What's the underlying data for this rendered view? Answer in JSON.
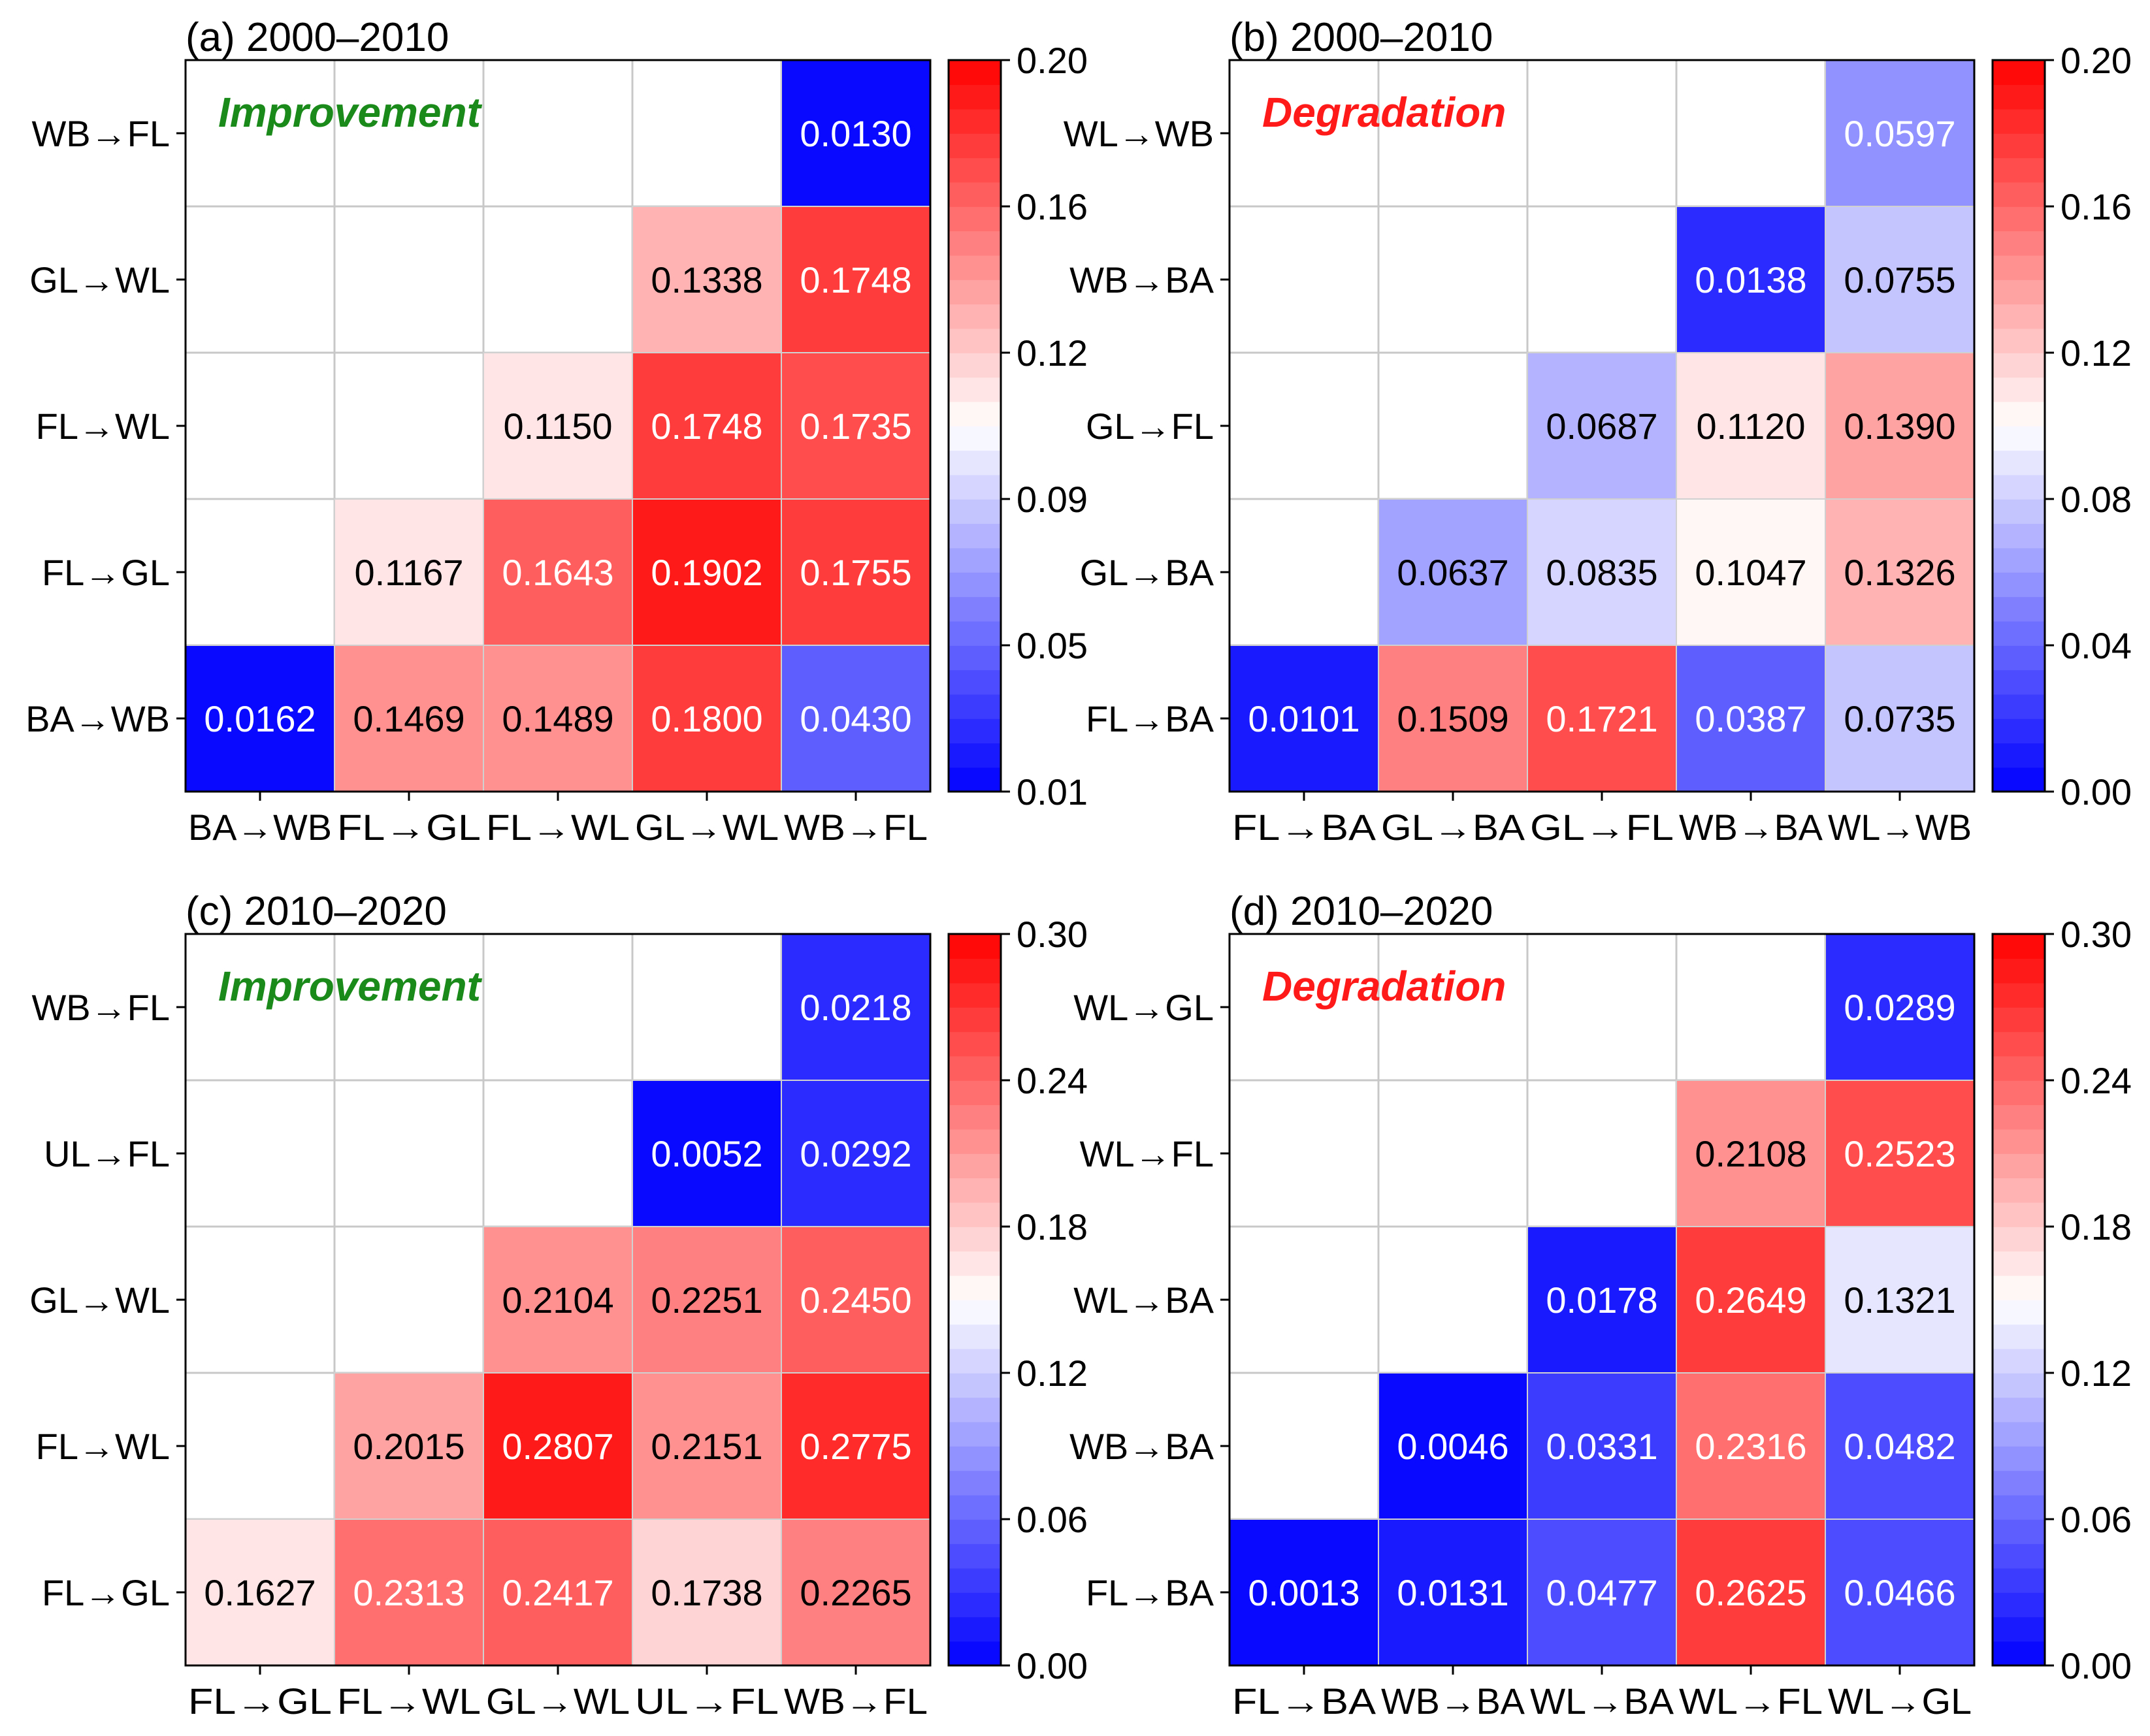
{
  "chart_data": [
    {
      "type": "heatmap",
      "title": "(a) 2000–2010",
      "annotation": "Improvement",
      "annotation_color": "#1a8a1a",
      "x_categories": [
        "BA→WB",
        "FL→GL",
        "FL→WL",
        "GL→WL",
        "WB→FL"
      ],
      "y_categories": [
        "WB→FL",
        "GL→WL",
        "FL→WL",
        "FL→GL",
        "BA→WB"
      ],
      "values": [
        [
          null,
          null,
          null,
          null,
          0.013
        ],
        [
          null,
          null,
          null,
          0.1338,
          0.1748
        ],
        [
          null,
          null,
          0.115,
          0.1748,
          0.1735
        ],
        [
          null,
          0.1167,
          0.1643,
          0.1902,
          0.1755
        ],
        [
          0.0162,
          0.1469,
          0.1489,
          0.18,
          0.043
        ]
      ],
      "value_labels": [
        [
          null,
          null,
          null,
          null,
          "0.0130"
        ],
        [
          null,
          null,
          null,
          "0.1338",
          "0.1748"
        ],
        [
          null,
          null,
          "0.1150",
          "0.1748",
          "0.1735"
        ],
        [
          null,
          "0.1167",
          "0.1643",
          "0.1902",
          "0.1755"
        ],
        [
          "0.0162",
          "0.1469",
          "0.1489",
          "0.1800",
          "0.0430"
        ]
      ],
      "colorbar": {
        "min": 0.01,
        "max": 0.2,
        "ticks": [
          "0.20",
          "0.16",
          "0.12",
          "0.09",
          "0.05",
          "0.01"
        ]
      }
    },
    {
      "type": "heatmap",
      "title": "(b) 2000–2010",
      "annotation": "Degradation",
      "annotation_color": "#ff1a1a",
      "x_categories": [
        "FL→BA",
        "GL→BA",
        "GL→FL",
        "WB→BA",
        "WL→WB"
      ],
      "y_categories": [
        "WL→WB",
        "WB→BA",
        "GL→FL",
        "GL→BA",
        "FL→BA"
      ],
      "values": [
        [
          null,
          null,
          null,
          null,
          0.0597
        ],
        [
          null,
          null,
          null,
          0.0138,
          0.0755
        ],
        [
          null,
          null,
          0.0687,
          0.112,
          0.139
        ],
        [
          null,
          0.0637,
          0.0835,
          0.1047,
          0.1326
        ],
        [
          0.0101,
          0.1509,
          0.1721,
          0.0387,
          0.0735
        ]
      ],
      "value_labels": [
        [
          null,
          null,
          null,
          null,
          "0.0597"
        ],
        [
          null,
          null,
          null,
          "0.0138",
          "0.0755"
        ],
        [
          null,
          null,
          "0.0687",
          "0.1120",
          "0.1390"
        ],
        [
          null,
          "0.0637",
          "0.0835",
          "0.1047",
          "0.1326"
        ],
        [
          "0.0101",
          "0.1509",
          "0.1721",
          "0.0387",
          "0.0735"
        ]
      ],
      "colorbar": {
        "min": 0.0,
        "max": 0.2,
        "ticks": [
          "0.20",
          "0.16",
          "0.12",
          "0.08",
          "0.04",
          "0.00"
        ]
      }
    },
    {
      "type": "heatmap",
      "title": "(c) 2010–2020",
      "annotation": "Improvement",
      "annotation_color": "#1a8a1a",
      "x_categories": [
        "FL→GL",
        "FL→WL",
        "GL→WL",
        "UL→FL",
        "WB→FL"
      ],
      "y_categories": [
        "WB→FL",
        "UL→FL",
        "GL→WL",
        "FL→WL",
        "FL→GL"
      ],
      "values": [
        [
          null,
          null,
          null,
          null,
          0.0218
        ],
        [
          null,
          null,
          null,
          0.0052,
          0.0292
        ],
        [
          null,
          null,
          0.2104,
          0.2251,
          0.245
        ],
        [
          null,
          0.2015,
          0.2807,
          0.2151,
          0.2775
        ],
        [
          0.1627,
          0.2313,
          0.2417,
          0.1738,
          0.2265
        ]
      ],
      "value_labels": [
        [
          null,
          null,
          null,
          null,
          "0.0218"
        ],
        [
          null,
          null,
          null,
          "0.0052",
          "0.0292"
        ],
        [
          null,
          null,
          "0.2104",
          "0.2251",
          "0.2450"
        ],
        [
          null,
          "0.2015",
          "0.2807",
          "0.2151",
          "0.2775"
        ],
        [
          "0.1627",
          "0.2313",
          "0.2417",
          "0.1738",
          "0.2265"
        ]
      ],
      "colorbar": {
        "min": 0.0,
        "max": 0.3,
        "ticks": [
          "0.30",
          "0.24",
          "0.18",
          "0.12",
          "0.06",
          "0.00"
        ]
      }
    },
    {
      "type": "heatmap",
      "title": "(d) 2010–2020",
      "annotation": "Degradation",
      "annotation_color": "#ff1a1a",
      "x_categories": [
        "FL→BA",
        "WB→BA",
        "WL→BA",
        "WL→FL",
        "WL→GL"
      ],
      "y_categories": [
        "WL→GL",
        "WL→FL",
        "WL→BA",
        "WB→BA",
        "FL→BA"
      ],
      "values": [
        [
          null,
          null,
          null,
          null,
          0.0289
        ],
        [
          null,
          null,
          null,
          0.2108,
          0.2523
        ],
        [
          null,
          null,
          0.0178,
          0.2649,
          0.1321
        ],
        [
          null,
          0.0046,
          0.0331,
          0.2316,
          0.0482
        ],
        [
          0.0013,
          0.0131,
          0.0477,
          0.2625,
          0.0466
        ]
      ],
      "value_labels": [
        [
          null,
          null,
          null,
          null,
          "0.0289"
        ],
        [
          null,
          null,
          null,
          "0.2108",
          "0.2523"
        ],
        [
          null,
          null,
          "0.0178",
          "0.2649",
          "0.1321"
        ],
        [
          null,
          "0.0046",
          "0.0331",
          "0.2316",
          "0.0482"
        ],
        [
          "0.0013",
          "0.0131",
          "0.0477",
          "0.2625",
          "0.0466"
        ]
      ],
      "colorbar": {
        "min": 0.0,
        "max": 0.3,
        "ticks": [
          "0.30",
          "0.24",
          "0.18",
          "0.12",
          "0.06",
          "0.00"
        ]
      }
    }
  ]
}
